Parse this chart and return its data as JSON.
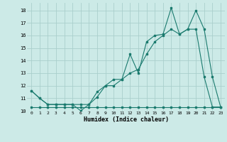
{
  "xlabel": "Humidex (Indice chaleur)",
  "background_color": "#cceae7",
  "line_color": "#1a7a6e",
  "grid_color": "#aacfcc",
  "xlim": [
    -0.5,
    23.5
  ],
  "ylim": [
    10.0,
    18.6
  ],
  "yticks": [
    10,
    11,
    12,
    13,
    14,
    15,
    16,
    17,
    18
  ],
  "xticks": [
    0,
    1,
    2,
    3,
    4,
    5,
    6,
    7,
    8,
    9,
    10,
    11,
    12,
    13,
    14,
    15,
    16,
    17,
    18,
    19,
    20,
    21,
    22,
    23
  ],
  "series1_x": [
    0,
    1,
    2,
    3,
    4,
    5,
    6,
    7,
    8,
    9,
    10,
    11,
    12,
    13,
    14,
    15,
    16,
    17,
    18,
    19,
    20,
    21,
    22,
    23
  ],
  "series1_y": [
    10.3,
    10.3,
    10.3,
    10.3,
    10.3,
    10.3,
    10.3,
    10.3,
    10.3,
    10.3,
    10.3,
    10.3,
    10.3,
    10.3,
    10.3,
    10.3,
    10.3,
    10.3,
    10.3,
    10.3,
    10.3,
    10.3,
    10.3,
    10.3
  ],
  "series2_x": [
    0,
    1,
    2,
    3,
    4,
    5,
    6,
    7,
    8,
    9,
    10,
    11,
    12,
    13,
    14,
    15,
    16,
    17,
    18,
    19,
    20,
    21,
    22,
    23
  ],
  "series2_y": [
    11.6,
    11.0,
    10.5,
    10.5,
    10.5,
    10.5,
    10.5,
    10.5,
    11.5,
    12.0,
    12.5,
    12.5,
    13.0,
    13.3,
    14.5,
    15.5,
    16.0,
    16.5,
    16.1,
    16.5,
    18.0,
    16.5,
    12.7,
    10.3
  ],
  "series3_x": [
    0,
    1,
    2,
    3,
    4,
    5,
    6,
    7,
    8,
    9,
    10,
    11,
    12,
    13,
    14,
    15,
    16,
    17,
    18,
    19,
    20,
    21,
    22,
    23
  ],
  "series3_y": [
    11.6,
    11.0,
    10.5,
    10.5,
    10.5,
    10.5,
    10.0,
    10.5,
    11.1,
    12.0,
    12.0,
    12.5,
    14.5,
    13.0,
    15.5,
    16.0,
    16.1,
    18.2,
    16.1,
    16.5,
    16.5,
    12.7,
    10.3,
    10.3
  ]
}
